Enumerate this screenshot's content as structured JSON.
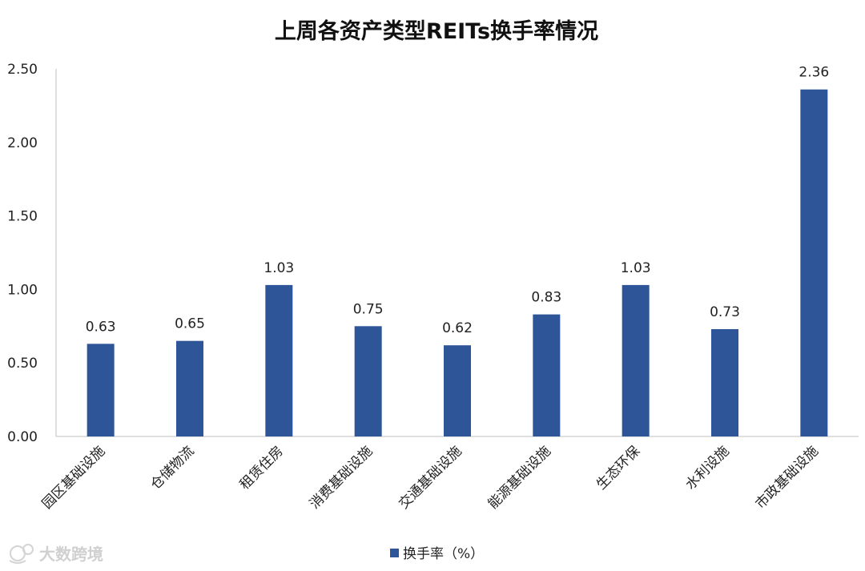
{
  "chart_data": {
    "type": "bar",
    "title": "上周各资产类型REITs换手率情况",
    "categories": [
      "园区基础设施",
      "仓储物流",
      "租赁住房",
      "消费基础设施",
      "交通基础设施",
      "能源基础设施",
      "生态环保",
      "水利设施",
      "市政基础设施"
    ],
    "series": [
      {
        "name": "换手率（%）",
        "values": [
          0.63,
          0.65,
          1.03,
          0.75,
          0.62,
          0.83,
          1.03,
          0.73,
          2.36
        ]
      }
    ],
    "data_labels": [
      "0.63",
      "0.65",
      "1.03",
      "0.75",
      "0.62",
      "0.83",
      "1.03",
      "0.73",
      "2.36"
    ],
    "y_ticks": [
      "0.00",
      "0.50",
      "1.00",
      "1.50",
      "2.00",
      "2.50"
    ],
    "ylim": [
      0,
      2.5
    ],
    "grid": false,
    "legend_position": "bottom",
    "bar_color": "#2E5597",
    "watermark": "大数跨境"
  }
}
